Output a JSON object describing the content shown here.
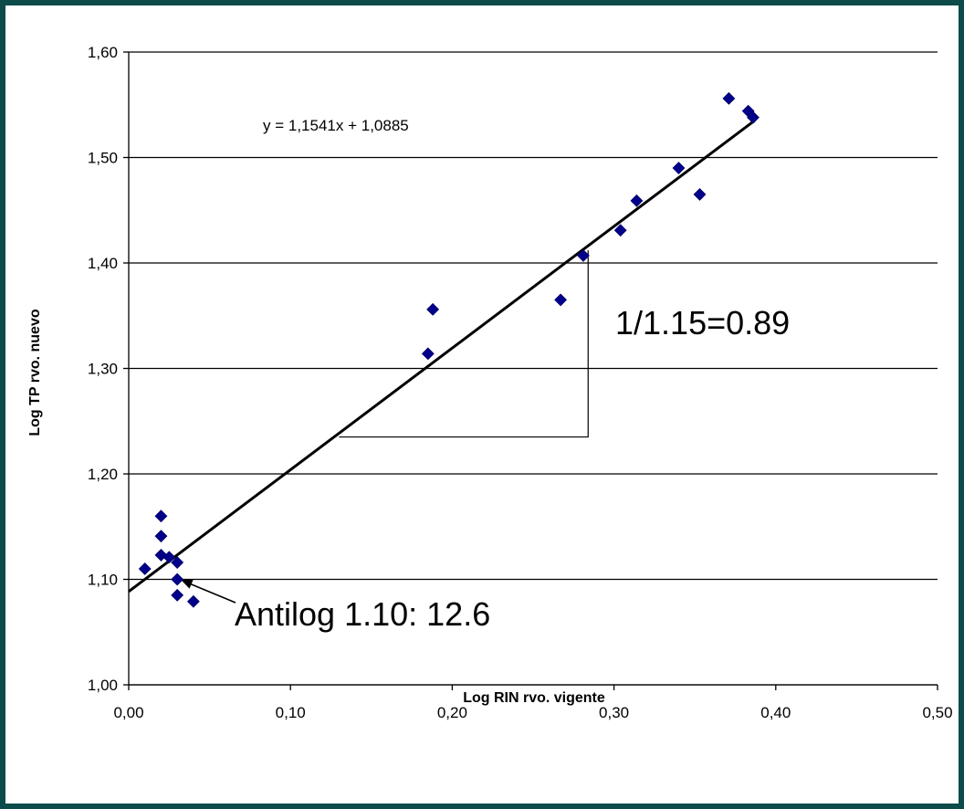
{
  "colors": {
    "background": "#0d4a4a",
    "point": "#00008b",
    "line": "#000000",
    "grid": "#000000"
  },
  "chart_data": {
    "type": "scatter",
    "xlabel": "Log RIN rvo. vigente",
    "ylabel": "Log TP rvo. nuevo",
    "xlim": [
      0,
      0.5
    ],
    "ylim": [
      1.0,
      1.6
    ],
    "x_ticks": [
      0,
      0.1,
      0.2,
      0.3,
      0.4,
      0.5
    ],
    "y_ticks": [
      1.0,
      1.1,
      1.2,
      1.3,
      1.4,
      1.5,
      1.6
    ],
    "x_tick_labels": [
      "0,00",
      "0,10",
      "0,20",
      "0,30",
      "0,40",
      "0,50"
    ],
    "y_tick_labels": [
      "1,00",
      "1,10",
      "1,20",
      "1,30",
      "1,40",
      "1,50",
      "1,60"
    ],
    "grid": "horizontal",
    "points": [
      {
        "x": 0.01,
        "y": 1.11
      },
      {
        "x": 0.02,
        "y": 1.16
      },
      {
        "x": 0.02,
        "y": 1.141
      },
      {
        "x": 0.02,
        "y": 1.123
      },
      {
        "x": 0.025,
        "y": 1.121
      },
      {
        "x": 0.03,
        "y": 1.116
      },
      {
        "x": 0.03,
        "y": 1.1
      },
      {
        "x": 0.03,
        "y": 1.085
      },
      {
        "x": 0.04,
        "y": 1.079
      },
      {
        "x": 0.185,
        "y": 1.314
      },
      {
        "x": 0.188,
        "y": 1.356
      },
      {
        "x": 0.267,
        "y": 1.365
      },
      {
        "x": 0.281,
        "y": 1.407
      },
      {
        "x": 0.304,
        "y": 1.431
      },
      {
        "x": 0.314,
        "y": 1.459
      },
      {
        "x": 0.34,
        "y": 1.49
      },
      {
        "x": 0.353,
        "y": 1.465
      },
      {
        "x": 0.371,
        "y": 1.556
      },
      {
        "x": 0.383,
        "y": 1.544
      },
      {
        "x": 0.386,
        "y": 1.538
      }
    ],
    "trendline": {
      "slope": 1.1541,
      "intercept": 1.0885,
      "x_range": [
        0,
        0.387
      ]
    },
    "annotations": {
      "equation": "y = 1,1541x + 1,0885",
      "slope_note": "1/1.15=0.89",
      "intercept_note": "Antilog 1.10: 12.6"
    },
    "slope_triangle": {
      "x1": 0.13,
      "x2": 0.284,
      "y_bottom": 1.235,
      "y_top": 1.412
    },
    "arrow": {
      "to_x": 0.032,
      "to_y": 1.1
    }
  }
}
